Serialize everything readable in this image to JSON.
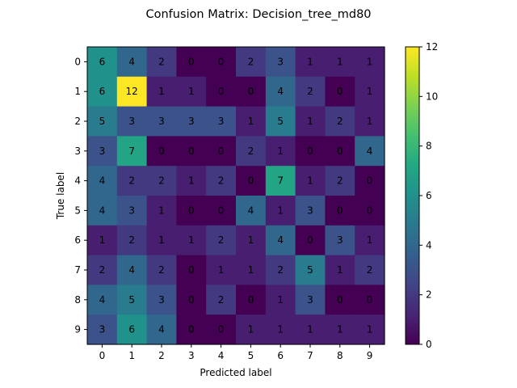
{
  "chart_data": {
    "type": "heatmap",
    "title": "Confusion Matrix: Decision_tree_md80",
    "xlabel": "Predicted label",
    "ylabel": "True label",
    "x_categories": [
      "0",
      "1",
      "2",
      "3",
      "4",
      "5",
      "6",
      "7",
      "8",
      "9"
    ],
    "y_categories": [
      "0",
      "1",
      "2",
      "3",
      "4",
      "5",
      "6",
      "7",
      "8",
      "9"
    ],
    "matrix": [
      [
        6,
        4,
        2,
        0,
        0,
        2,
        3,
        1,
        1,
        1
      ],
      [
        6,
        12,
        1,
        1,
        0,
        0,
        4,
        2,
        0,
        1
      ],
      [
        5,
        3,
        3,
        3,
        3,
        1,
        5,
        1,
        2,
        1
      ],
      [
        3,
        7,
        0,
        0,
        0,
        2,
        1,
        0,
        0,
        4
      ],
      [
        4,
        2,
        2,
        1,
        2,
        0,
        7,
        1,
        2,
        0
      ],
      [
        4,
        3,
        1,
        0,
        0,
        4,
        1,
        3,
        0,
        0
      ],
      [
        1,
        2,
        1,
        1,
        2,
        1,
        4,
        0,
        3,
        1
      ],
      [
        2,
        4,
        2,
        0,
        1,
        1,
        2,
        5,
        1,
        2
      ],
      [
        4,
        5,
        3,
        0,
        2,
        0,
        1,
        3,
        0,
        0
      ],
      [
        3,
        6,
        4,
        0,
        0,
        1,
        1,
        1,
        1,
        1
      ]
    ],
    "value_range": [
      0,
      12
    ],
    "colormap": "viridis",
    "colorbar_ticks": [
      "0",
      "2",
      "4",
      "6",
      "8",
      "10",
      "12"
    ],
    "colors": {
      "text_on_dark": "#fde725",
      "text_on_light": "#000000"
    }
  }
}
